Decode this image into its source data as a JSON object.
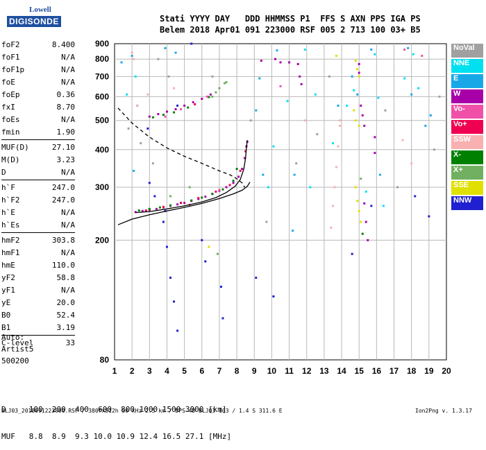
{
  "logo": {
    "line1": "Lowell",
    "line2": "DIGISONDE"
  },
  "header": {
    "line1": "Stati YYYY DAY   DDD HHMMSS P1  FFS S AXN PPS IGA PS",
    "line2": "Belem 2018 Apr01 091 223000 RSF 005 2 713 100 03+ B5"
  },
  "params": [
    {
      "label": "foF2",
      "value": "8.400"
    },
    {
      "label": "foF1",
      "value": "N/A"
    },
    {
      "label": "foF1p",
      "value": "N/A"
    },
    {
      "label": "foE",
      "value": "N/A"
    },
    {
      "label": "foEp",
      "value": "0.36"
    },
    {
      "label": "fxI",
      "value": "8.70"
    },
    {
      "label": "foEs",
      "value": "N/A"
    },
    {
      "label": "fmin",
      "value": "1.90"
    },
    {
      "sep": true
    },
    {
      "label": "MUF(D)",
      "value": "27.10"
    },
    {
      "label": "M(D)",
      "value": "3.23"
    },
    {
      "label": "D",
      "value": "N/A"
    },
    {
      "sep": true
    },
    {
      "label": "h`F",
      "value": "247.0"
    },
    {
      "label": "h`F2",
      "value": "247.0"
    },
    {
      "label": "h`E",
      "value": "N/A"
    },
    {
      "label": "h`Es",
      "value": "N/A"
    },
    {
      "sep": true
    },
    {
      "label": "hmF2",
      "value": "303.8"
    },
    {
      "label": "hmF1",
      "value": "N/A"
    },
    {
      "label": "hmE",
      "value": "110.0"
    },
    {
      "label": "yF2",
      "value": "58.8"
    },
    {
      "label": "yF1",
      "value": "N/A"
    },
    {
      "label": "yE",
      "value": "20.0"
    },
    {
      "label": "B0",
      "value": "52.4"
    },
    {
      "label": "B1",
      "value": "3.19"
    },
    {
      "sep": true
    },
    {
      "label": "C-level",
      "value": "33"
    }
  ],
  "auto_lines": [
    "Auto:",
    "Artist5",
    "500200"
  ],
  "legend": [
    {
      "label": "NoVal",
      "color": "#a0a0a0"
    },
    {
      "label": "NNE",
      "color": "#00e0f0"
    },
    {
      "label": "E",
      "color": "#18a8e8"
    },
    {
      "label": "W",
      "color": "#a800a8"
    },
    {
      "label": "Vo-",
      "color": "#f050a8"
    },
    {
      "label": "Vo+",
      "color": "#f00050"
    },
    {
      "label": "SSW",
      "color": "#f8b0b0"
    },
    {
      "label": "X-",
      "color": "#008000"
    },
    {
      "label": "X+",
      "color": "#70b060"
    },
    {
      "label": "SSE",
      "color": "#e0e000"
    },
    {
      "label": "NNW",
      "color": "#2020d0"
    }
  ],
  "dmuf": {
    "d_line": "D     100  200  400  600  800 1000 1500 3000 [km]",
    "muf_line": "MUF   8.8  8.9  9.3 10.0 10.9 12.4 16.5 27.1 [MHz]"
  },
  "footer": {
    "left": "BLJ03_2018091223000.RSF / 380fx512h 50 kHz 2.5 km / DPS-4D BLJ03 103 / 1.4 S 311.6 E",
    "right": "Ion2Png v. 1.3.17"
  },
  "chart_data": {
    "type": "scatter",
    "title": "",
    "xlabel": "",
    "ylabel": "",
    "xlim": [
      1,
      20
    ],
    "ylim": [
      80,
      900
    ],
    "y_scale": "log",
    "x_ticks": [
      1,
      2,
      3,
      4,
      5,
      6,
      7,
      8,
      9,
      10,
      11,
      12,
      13,
      14,
      15,
      16,
      17,
      18,
      19,
      20
    ],
    "y_ticks": [
      80,
      200,
      300,
      400,
      500,
      600,
      700,
      800,
      900
    ],
    "grid": true,
    "series": [
      {
        "name": "W",
        "kind": "points",
        "color": "#a800a8",
        "points": [
          [
            2.2,
            248
          ],
          [
            2.6,
            250
          ],
          [
            3.0,
            252
          ],
          [
            3.4,
            254
          ],
          [
            3.8,
            257
          ],
          [
            4.2,
            260
          ],
          [
            4.6,
            263
          ],
          [
            5.0,
            266
          ],
          [
            5.4,
            270
          ],
          [
            5.8,
            274
          ],
          [
            6.2,
            279
          ],
          [
            6.6,
            285
          ],
          [
            7.0,
            292
          ],
          [
            7.4,
            300
          ],
          [
            7.8,
            310
          ],
          [
            8.1,
            325
          ],
          [
            8.3,
            345
          ],
          [
            8.45,
            375
          ],
          [
            8.55,
            410
          ],
          [
            8.6,
            425
          ],
          [
            3.0,
            515
          ],
          [
            3.5,
            525
          ],
          [
            4.0,
            535
          ],
          [
            4.5,
            545
          ],
          [
            5.0,
            560
          ],
          [
            5.5,
            575
          ],
          [
            6.0,
            590
          ],
          [
            6.5,
            610
          ],
          [
            15.0,
            770
          ],
          [
            15.0,
            720
          ],
          [
            15.1,
            560
          ],
          [
            15.2,
            520
          ],
          [
            15.3,
            480
          ],
          [
            15.9,
            440
          ],
          [
            15.9,
            390
          ],
          [
            15.3,
            265
          ],
          [
            15.4,
            230
          ],
          [
            15.5,
            200
          ],
          [
            9.4,
            790
          ],
          [
            10.2,
            800
          ],
          [
            10.5,
            780
          ],
          [
            11.0,
            780
          ],
          [
            11.5,
            770
          ],
          [
            11.6,
            700
          ],
          [
            11.7,
            660
          ]
        ]
      },
      {
        "name": "X-",
        "kind": "points",
        "color": "#008000",
        "points": [
          [
            2.4,
            251
          ],
          [
            3.0,
            254
          ],
          [
            3.6,
            257
          ],
          [
            4.2,
            261
          ],
          [
            4.8,
            266
          ],
          [
            5.4,
            271
          ],
          [
            6.0,
            277
          ],
          [
            6.6,
            285
          ],
          [
            7.2,
            295
          ],
          [
            7.8,
            315
          ],
          [
            8.0,
            345
          ],
          [
            3.2,
            512
          ],
          [
            3.8,
            522
          ],
          [
            4.4,
            532
          ],
          [
            5.2,
            552
          ],
          [
            6.4,
            598
          ],
          [
            15.2,
            210
          ]
        ]
      },
      {
        "name": "Vo+",
        "kind": "points",
        "color": "#f00050",
        "points": [
          [
            2.8,
            251
          ],
          [
            3.8,
            258
          ],
          [
            4.8,
            266
          ],
          [
            5.8,
            276
          ],
          [
            6.8,
            290
          ],
          [
            7.6,
            305
          ],
          [
            8.2,
            340
          ],
          [
            8.5,
            395
          ],
          [
            5.6,
            566
          ]
        ]
      },
      {
        "name": "E",
        "kind": "points",
        "color": "#18a8e8",
        "points": [
          [
            1.4,
            780
          ],
          [
            2.0,
            820
          ],
          [
            2.1,
            340
          ],
          [
            2.3,
            560
          ],
          [
            3.9,
            870
          ],
          [
            4.5,
            840
          ],
          [
            9.1,
            540
          ],
          [
            9.3,
            690
          ],
          [
            9.5,
            330
          ],
          [
            13.8,
            560
          ],
          [
            14.9,
            610
          ],
          [
            14.6,
            700
          ],
          [
            15.7,
            860
          ],
          [
            17.8,
            870
          ],
          [
            18.0,
            610
          ],
          [
            18.8,
            480
          ],
          [
            19.1,
            520
          ],
          [
            16.2,
            330
          ],
          [
            11.2,
            215
          ],
          [
            11.3,
            330
          ],
          [
            10.3,
            855
          ]
        ]
      },
      {
        "name": "NNE",
        "kind": "points",
        "color": "#00e0f0",
        "points": [
          [
            1.7,
            610
          ],
          [
            2.2,
            700
          ],
          [
            9.8,
            300
          ],
          [
            10.1,
            410
          ],
          [
            10.9,
            580
          ],
          [
            11.9,
            860
          ],
          [
            12.5,
            610
          ],
          [
            14.3,
            560
          ],
          [
            14.7,
            630
          ],
          [
            15.4,
            290
          ],
          [
            15.9,
            830
          ],
          [
            16.1,
            595
          ],
          [
            17.6,
            690
          ],
          [
            18.1,
            830
          ],
          [
            18.4,
            640
          ],
          [
            12.2,
            300
          ],
          [
            13.5,
            420
          ],
          [
            16.4,
            260
          ]
        ]
      },
      {
        "name": "SSE",
        "kind": "points",
        "color": "#e0e000",
        "points": [
          [
            14.8,
            790
          ],
          [
            14.9,
            740
          ],
          [
            15.0,
            700
          ],
          [
            14.7,
            540
          ],
          [
            14.8,
            500
          ],
          [
            15.0,
            480
          ],
          [
            14.8,
            300
          ],
          [
            14.9,
            270
          ],
          [
            15.0,
            250
          ],
          [
            15.1,
            230
          ],
          [
            6.4,
            190
          ],
          [
            13.7,
            820
          ]
        ]
      },
      {
        "name": "SSW",
        "kind": "points",
        "color": "#f8b0b0",
        "points": [
          [
            2.0,
            840
          ],
          [
            2.1,
            800
          ],
          [
            2.3,
            560
          ],
          [
            2.9,
            610
          ],
          [
            4.4,
            640
          ],
          [
            13.4,
            220
          ],
          [
            13.5,
            260
          ],
          [
            13.6,
            300
          ],
          [
            13.7,
            350
          ],
          [
            13.8,
            410
          ],
          [
            13.9,
            480
          ],
          [
            13.9,
            500
          ],
          [
            17.5,
            430
          ],
          [
            18.0,
            360
          ],
          [
            11.9,
            500
          ]
        ]
      },
      {
        "name": "NNW",
        "kind": "points",
        "color": "#2020d0",
        "points": [
          [
            2.9,
            470
          ],
          [
            3.0,
            310
          ],
          [
            3.3,
            280
          ],
          [
            3.8,
            230
          ],
          [
            4.0,
            190
          ],
          [
            4.2,
            150
          ],
          [
            4.4,
            125
          ],
          [
            4.6,
            100
          ],
          [
            5.4,
            900
          ],
          [
            6.0,
            200
          ],
          [
            6.2,
            170
          ],
          [
            7.1,
            140
          ],
          [
            7.2,
            110
          ],
          [
            9.1,
            150
          ],
          [
            10.1,
            130
          ],
          [
            14.6,
            180
          ],
          [
            15.7,
            260
          ],
          [
            18.2,
            280
          ],
          [
            19.0,
            240
          ],
          [
            3.9,
            250
          ],
          [
            4.6,
            560
          ]
        ]
      },
      {
        "name": "Vo-",
        "kind": "points",
        "color": "#f050a8",
        "points": [
          [
            3.9,
            515
          ],
          [
            4.8,
            545
          ],
          [
            6.3,
            600
          ],
          [
            5.3,
            262
          ],
          [
            7.0,
            294
          ],
          [
            17.6,
            860
          ],
          [
            18.6,
            820
          ],
          [
            10.5,
            650
          ]
        ]
      },
      {
        "name": "X+",
        "kind": "points",
        "color": "#70b060",
        "points": [
          [
            6.6,
            600
          ],
          [
            6.8,
            620
          ],
          [
            7.0,
            640
          ],
          [
            7.3,
            665
          ],
          [
            7.4,
            670
          ],
          [
            4.2,
            280
          ],
          [
            5.3,
            300
          ],
          [
            6.9,
            180
          ],
          [
            15.1,
            320
          ]
        ]
      },
      {
        "name": "NoVal",
        "kind": "points",
        "color": "#a0a0a0",
        "points": [
          [
            1.8,
            470
          ],
          [
            2.5,
            420
          ],
          [
            3.2,
            360
          ],
          [
            3.5,
            800
          ],
          [
            4.1,
            700
          ],
          [
            6.6,
            700
          ],
          [
            8.8,
            500
          ],
          [
            11.4,
            360
          ],
          [
            12.6,
            450
          ],
          [
            13.3,
            700
          ],
          [
            16.5,
            540
          ],
          [
            17.2,
            300
          ],
          [
            19.3,
            400
          ],
          [
            19.6,
            600
          ],
          [
            9.7,
            230
          ]
        ]
      },
      {
        "name": "",
        "kind": "dashed",
        "color": "#000000",
        "points": [
          [
            1.2,
            550
          ],
          [
            2.0,
            490
          ],
          [
            3.0,
            440
          ],
          [
            4.0,
            405
          ],
          [
            5.0,
            380
          ],
          [
            6.0,
            360
          ],
          [
            7.0,
            340
          ],
          [
            7.6,
            330
          ],
          [
            8.0,
            320
          ],
          [
            8.3,
            310
          ],
          [
            8.45,
            300
          ]
        ]
      },
      {
        "name": "",
        "kind": "solid",
        "color": "#000000",
        "points": [
          [
            1.2,
            225
          ],
          [
            2.0,
            235
          ],
          [
            3.0,
            243
          ],
          [
            4.0,
            250
          ],
          [
            5.0,
            257
          ],
          [
            6.0,
            265
          ],
          [
            7.0,
            275
          ],
          [
            7.8,
            285
          ],
          [
            8.3,
            293
          ],
          [
            8.6,
            302
          ],
          [
            8.75,
            312
          ]
        ]
      },
      {
        "name": "",
        "kind": "solid",
        "color": "#000000",
        "points": [
          [
            2.2,
            247
          ],
          [
            3.0,
            249
          ],
          [
            4.0,
            254
          ],
          [
            5.0,
            260
          ],
          [
            6.0,
            268
          ],
          [
            6.8,
            277
          ],
          [
            7.4,
            288
          ],
          [
            7.9,
            302
          ],
          [
            8.2,
            318
          ],
          [
            8.4,
            345
          ],
          [
            8.5,
            375
          ],
          [
            8.55,
            405
          ],
          [
            8.6,
            430
          ]
        ]
      }
    ]
  }
}
